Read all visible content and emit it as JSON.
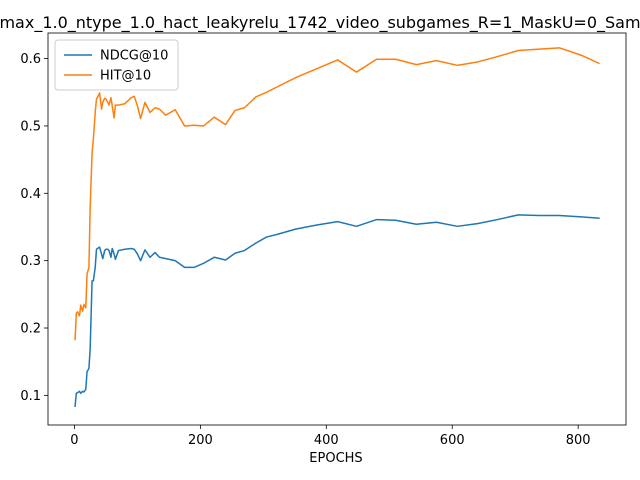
{
  "chart_data": {
    "type": "line",
    "title": "max_1.0_ntype_1.0_hact_leakyrelu_1742_video_subgames_R=1_MaskU=0_Sam",
    "xlabel": "EPOCHS",
    "ylabel": "",
    "xlim": [
      -42,
      876
    ],
    "ylim": [
      0.056,
      0.638
    ],
    "xticks": [
      0,
      200,
      400,
      600,
      800
    ],
    "yticks": [
      0.1,
      0.2,
      0.3,
      0.4,
      0.5,
      0.6
    ],
    "xtick_labels": [
      "0",
      "200",
      "400",
      "600",
      "800"
    ],
    "ytick_labels": [
      "0.1",
      "0.2",
      "0.3",
      "0.4",
      "0.5",
      "0.6"
    ],
    "grid": false,
    "legend_position": "top-left",
    "series": [
      {
        "name": "NDCG@10",
        "color": "#1f77b4",
        "x": [
          1,
          3,
          5,
          8,
          10,
          13,
          15,
          18,
          20,
          23,
          25,
          28,
          30,
          33,
          35,
          38,
          40,
          43,
          45,
          48,
          50,
          53,
          55,
          58,
          60,
          63,
          65,
          70,
          80,
          90,
          95,
          100,
          105,
          112,
          120,
          128,
          135,
          145,
          160,
          175,
          190,
          205,
          222,
          240,
          255,
          270,
          288,
          305,
          322,
          352,
          385,
          418,
          448,
          480,
          510,
          543,
          575,
          608,
          640,
          672,
          705,
          738,
          770,
          805,
          833
        ],
        "y": [
          0.084,
          0.103,
          0.104,
          0.106,
          0.103,
          0.106,
          0.105,
          0.109,
          0.135,
          0.14,
          0.17,
          0.27,
          0.27,
          0.29,
          0.317,
          0.319,
          0.32,
          0.31,
          0.303,
          0.315,
          0.317,
          0.317,
          0.315,
          0.305,
          0.318,
          0.31,
          0.302,
          0.315,
          0.317,
          0.318,
          0.317,
          0.31,
          0.3,
          0.316,
          0.305,
          0.312,
          0.305,
          0.303,
          0.3,
          0.29,
          0.29,
          0.296,
          0.305,
          0.301,
          0.311,
          0.315,
          0.326,
          0.335,
          0.339,
          0.347,
          0.353,
          0.358,
          0.351,
          0.361,
          0.36,
          0.354,
          0.357,
          0.351,
          0.355,
          0.361,
          0.368,
          0.367,
          0.367,
          0.365,
          0.363
        ]
      },
      {
        "name": "HIT@10",
        "color": "#ff7f0e",
        "x": [
          1,
          3,
          5,
          8,
          10,
          13,
          15,
          18,
          20,
          23,
          25,
          28,
          30,
          33,
          35,
          38,
          40,
          43,
          45,
          48,
          50,
          53,
          55,
          58,
          60,
          63,
          65,
          70,
          80,
          90,
          95,
          100,
          105,
          112,
          120,
          128,
          135,
          145,
          160,
          175,
          190,
          205,
          222,
          240,
          255,
          270,
          288,
          305,
          322,
          352,
          385,
          418,
          448,
          480,
          510,
          543,
          575,
          608,
          640,
          672,
          705,
          738,
          770,
          805,
          833
        ],
        "y": [
          0.183,
          0.222,
          0.224,
          0.218,
          0.234,
          0.225,
          0.235,
          0.23,
          0.28,
          0.29,
          0.38,
          0.46,
          0.48,
          0.52,
          0.54,
          0.545,
          0.549,
          0.525,
          0.535,
          0.541,
          0.54,
          0.535,
          0.531,
          0.542,
          0.53,
          0.512,
          0.531,
          0.531,
          0.533,
          0.542,
          0.544,
          0.53,
          0.511,
          0.535,
          0.52,
          0.527,
          0.525,
          0.516,
          0.524,
          0.5,
          0.501,
          0.5,
          0.513,
          0.502,
          0.523,
          0.527,
          0.543,
          0.55,
          0.558,
          0.572,
          0.585,
          0.598,
          0.58,
          0.599,
          0.599,
          0.591,
          0.597,
          0.59,
          0.595,
          0.603,
          0.612,
          0.614,
          0.616,
          0.605,
          0.593
        ]
      }
    ]
  }
}
